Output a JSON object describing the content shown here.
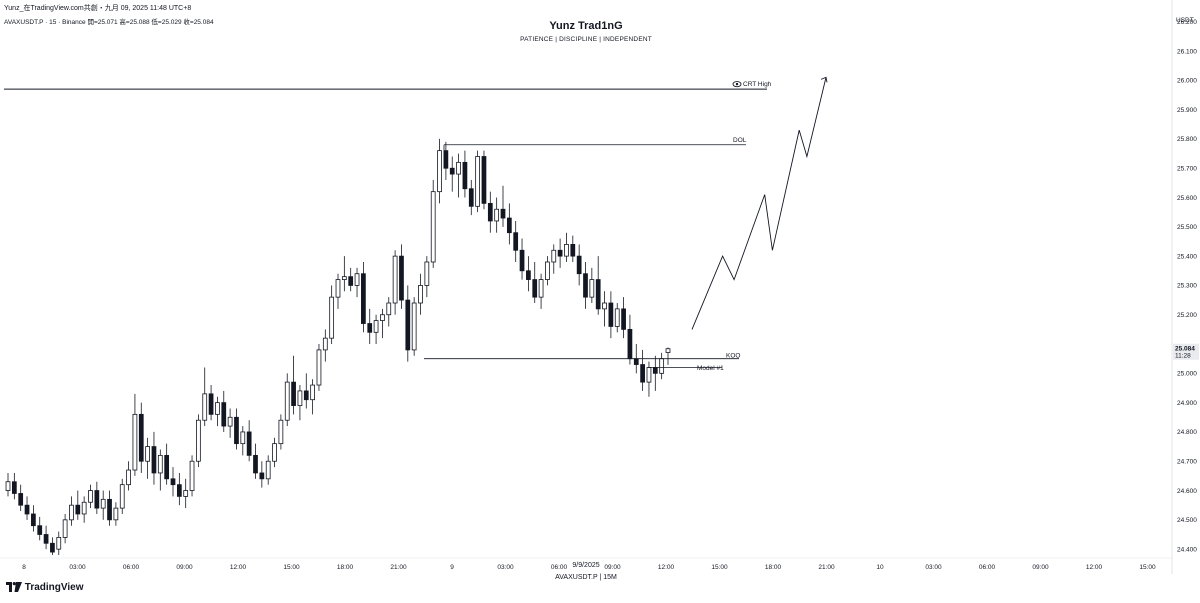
{
  "header": {
    "title_line": "Yunz_在TradingView.com共創・九月 09, 2025 11:48 UTC+8",
    "symbol_line": "AVAXUSDT.P · 15 · Binance  開=25.071  高=25.088  低=25.029  收=25.084",
    "brand": "Yunz Trad1nG",
    "tagline": "PATIENCE   |   DISCIPLINE   |   INDEPENDENT"
  },
  "watermark": {
    "date": "9/9/2025",
    "symbol": "AVAXUSDT.P  |  15M"
  },
  "logo": {
    "text": "TradingView",
    "icon": "tradingview-logo-icon"
  },
  "price_axis": {
    "unit": "USDT",
    "ticks": [
      "26.200",
      "26.100",
      "26.000",
      "25.900",
      "25.800",
      "25.700",
      "25.600",
      "25.500",
      "25.400",
      "25.300",
      "25.200",
      "25.000",
      "24.900",
      "24.800",
      "24.700",
      "24.600",
      "24.500",
      "24.400"
    ],
    "current_price": "25.084",
    "countdown": "11:28"
  },
  "time_axis": {
    "ticks": [
      "8",
      "03:00",
      "06:00",
      "09:00",
      "12:00",
      "15:00",
      "18:00",
      "21:00",
      "9",
      "03:00",
      "06:00",
      "09:00",
      "12:00",
      "15:00",
      "18:00",
      "21:00",
      "10",
      "03:00",
      "06:00",
      "09:00",
      "12:00",
      "15:00"
    ]
  },
  "annotations": {
    "crt_high": "CRT High",
    "dol": "DOL",
    "koo": "KOO",
    "model": "Model #1"
  },
  "colors": {
    "background": "#ffffff",
    "ink": "#131722",
    "price_label_bg": "#e9ebef"
  },
  "chart_data": {
    "type": "candlestick",
    "ylim": [
      24.38,
      26.24
    ],
    "horizontal_levels": [
      {
        "label": "CRT High",
        "price": 25.97
      },
      {
        "label": "DOL",
        "price": 25.78
      },
      {
        "label": "KOO",
        "price": 25.05
      },
      {
        "label": "Model #1",
        "price": 25.02
      }
    ],
    "candles": [
      [
        24.6,
        24.66,
        24.58,
        24.63
      ],
      [
        24.63,
        24.66,
        24.57,
        24.59
      ],
      [
        24.59,
        24.62,
        24.53,
        24.55
      ],
      [
        24.55,
        24.58,
        24.5,
        24.52
      ],
      [
        24.52,
        24.55,
        24.46,
        24.48
      ],
      [
        24.48,
        24.51,
        24.43,
        24.45
      ],
      [
        24.45,
        24.48,
        24.4,
        24.42
      ],
      [
        24.42,
        24.44,
        24.38,
        24.39
      ],
      [
        24.4,
        24.46,
        24.38,
        24.44
      ],
      [
        24.44,
        24.52,
        24.42,
        24.5
      ],
      [
        24.5,
        24.58,
        24.48,
        24.55
      ],
      [
        24.55,
        24.6,
        24.5,
        24.52
      ],
      [
        24.52,
        24.58,
        24.49,
        24.56
      ],
      [
        24.56,
        24.62,
        24.54,
        24.6
      ],
      [
        24.6,
        24.63,
        24.52,
        24.54
      ],
      [
        24.54,
        24.6,
        24.5,
        24.57
      ],
      [
        24.57,
        24.6,
        24.48,
        24.5
      ],
      [
        24.5,
        24.56,
        24.48,
        24.54
      ],
      [
        24.54,
        24.64,
        24.52,
        24.62
      ],
      [
        24.62,
        24.7,
        24.6,
        24.67
      ],
      [
        24.67,
        24.93,
        24.65,
        24.86
      ],
      [
        24.86,
        24.9,
        24.66,
        24.7
      ],
      [
        24.7,
        24.78,
        24.64,
        24.75
      ],
      [
        24.75,
        24.8,
        24.62,
        24.66
      ],
      [
        24.66,
        24.74,
        24.6,
        24.72
      ],
      [
        24.72,
        24.76,
        24.62,
        24.64
      ],
      [
        24.64,
        24.68,
        24.58,
        24.62
      ],
      [
        24.62,
        24.66,
        24.55,
        24.58
      ],
      [
        24.58,
        24.64,
        24.54,
        24.6
      ],
      [
        24.6,
        24.72,
        24.58,
        24.7
      ],
      [
        24.7,
        24.86,
        24.68,
        24.84
      ],
      [
        24.84,
        25.02,
        24.82,
        24.93
      ],
      [
        24.93,
        24.96,
        24.84,
        24.86
      ],
      [
        24.86,
        24.92,
        24.82,
        24.9
      ],
      [
        24.9,
        24.94,
        24.8,
        24.82
      ],
      [
        24.82,
        24.88,
        24.78,
        24.85
      ],
      [
        24.85,
        24.88,
        24.74,
        24.76
      ],
      [
        24.76,
        24.82,
        24.72,
        24.8
      ],
      [
        24.8,
        24.84,
        24.7,
        24.72
      ],
      [
        24.72,
        24.76,
        24.64,
        24.66
      ],
      [
        24.66,
        24.7,
        24.61,
        24.64
      ],
      [
        24.64,
        24.72,
        24.62,
        24.7
      ],
      [
        24.7,
        24.78,
        24.68,
        24.76
      ],
      [
        24.76,
        24.86,
        24.74,
        24.84
      ],
      [
        24.84,
        25.0,
        24.82,
        24.97
      ],
      [
        24.97,
        25.06,
        24.86,
        24.89
      ],
      [
        24.89,
        24.96,
        24.84,
        24.94
      ],
      [
        24.94,
        25.0,
        24.88,
        24.91
      ],
      [
        24.91,
        24.98,
        24.86,
        24.96
      ],
      [
        24.96,
        25.1,
        24.94,
        25.08
      ],
      [
        25.08,
        25.15,
        25.04,
        25.12
      ],
      [
        25.12,
        25.3,
        25.1,
        25.26
      ],
      [
        25.26,
        25.34,
        25.22,
        25.32
      ],
      [
        25.32,
        25.4,
        25.28,
        25.33
      ],
      [
        25.33,
        25.36,
        25.28,
        25.3
      ],
      [
        25.3,
        25.36,
        25.26,
        25.34
      ],
      [
        25.34,
        25.38,
        25.14,
        25.17
      ],
      [
        25.17,
        25.22,
        25.1,
        25.14
      ],
      [
        25.14,
        25.2,
        25.1,
        25.18
      ],
      [
        25.18,
        25.22,
        25.12,
        25.2
      ],
      [
        25.2,
        25.26,
        25.16,
        25.24
      ],
      [
        25.24,
        25.42,
        25.2,
        25.4
      ],
      [
        25.4,
        25.44,
        25.22,
        25.25
      ],
      [
        25.25,
        25.3,
        25.04,
        25.08
      ],
      [
        25.08,
        25.26,
        25.06,
        25.24
      ],
      [
        25.24,
        25.34,
        25.2,
        25.3
      ],
      [
        25.3,
        25.4,
        25.26,
        25.38
      ],
      [
        25.38,
        25.66,
        25.36,
        25.62
      ],
      [
        25.62,
        25.8,
        25.58,
        25.76
      ],
      [
        25.76,
        25.79,
        25.66,
        25.7
      ],
      [
        25.7,
        25.74,
        25.62,
        25.68
      ],
      [
        25.68,
        25.75,
        25.6,
        25.72
      ],
      [
        25.72,
        25.76,
        25.6,
        25.63
      ],
      [
        25.63,
        25.66,
        25.54,
        25.57
      ],
      [
        25.57,
        25.76,
        25.55,
        25.74
      ],
      [
        25.74,
        25.76,
        25.56,
        25.58
      ],
      [
        25.58,
        25.62,
        25.48,
        25.52
      ],
      [
        25.52,
        25.6,
        25.48,
        25.56
      ],
      [
        25.56,
        25.64,
        25.5,
        25.53
      ],
      [
        25.53,
        25.58,
        25.44,
        25.48
      ],
      [
        25.48,
        25.52,
        25.38,
        25.42
      ],
      [
        25.42,
        25.46,
        25.32,
        25.35
      ],
      [
        25.35,
        25.4,
        25.28,
        25.32
      ],
      [
        25.32,
        25.38,
        25.24,
        25.26
      ],
      [
        25.26,
        25.34,
        25.22,
        25.32
      ],
      [
        25.32,
        25.4,
        25.3,
        25.38
      ],
      [
        25.38,
        25.44,
        25.34,
        25.42
      ],
      [
        25.42,
        25.46,
        25.36,
        25.4
      ],
      [
        25.4,
        25.48,
        25.38,
        25.44
      ],
      [
        25.44,
        25.47,
        25.38,
        25.4
      ],
      [
        25.4,
        25.44,
        25.3,
        25.34
      ],
      [
        25.34,
        25.38,
        25.22,
        25.26
      ],
      [
        25.26,
        25.36,
        25.24,
        25.32
      ],
      [
        25.32,
        25.4,
        25.2,
        25.22
      ],
      [
        25.22,
        25.28,
        25.16,
        25.24
      ],
      [
        25.24,
        25.28,
        25.12,
        25.16
      ],
      [
        25.16,
        25.24,
        25.14,
        25.22
      ],
      [
        25.22,
        25.26,
        25.12,
        25.15
      ],
      [
        25.15,
        25.2,
        25.03,
        25.05
      ],
      [
        25.05,
        25.1,
        25.0,
        25.03
      ],
      [
        25.03,
        25.08,
        24.94,
        24.97
      ],
      [
        24.97,
        25.04,
        24.92,
        25.02
      ],
      [
        25.02,
        25.06,
        24.94,
        25.0
      ],
      [
        25.0,
        25.07,
        24.98,
        25.05
      ],
      [
        25.071,
        25.088,
        25.029,
        25.084
      ]
    ],
    "projection_path": [
      [
        0.0,
        25.15
      ],
      [
        1.6,
        25.4
      ],
      [
        2.2,
        25.32
      ],
      [
        3.8,
        25.61
      ],
      [
        4.2,
        25.42
      ],
      [
        5.6,
        25.83
      ],
      [
        6.0,
        25.74
      ],
      [
        7.0,
        26.01
      ]
    ]
  }
}
